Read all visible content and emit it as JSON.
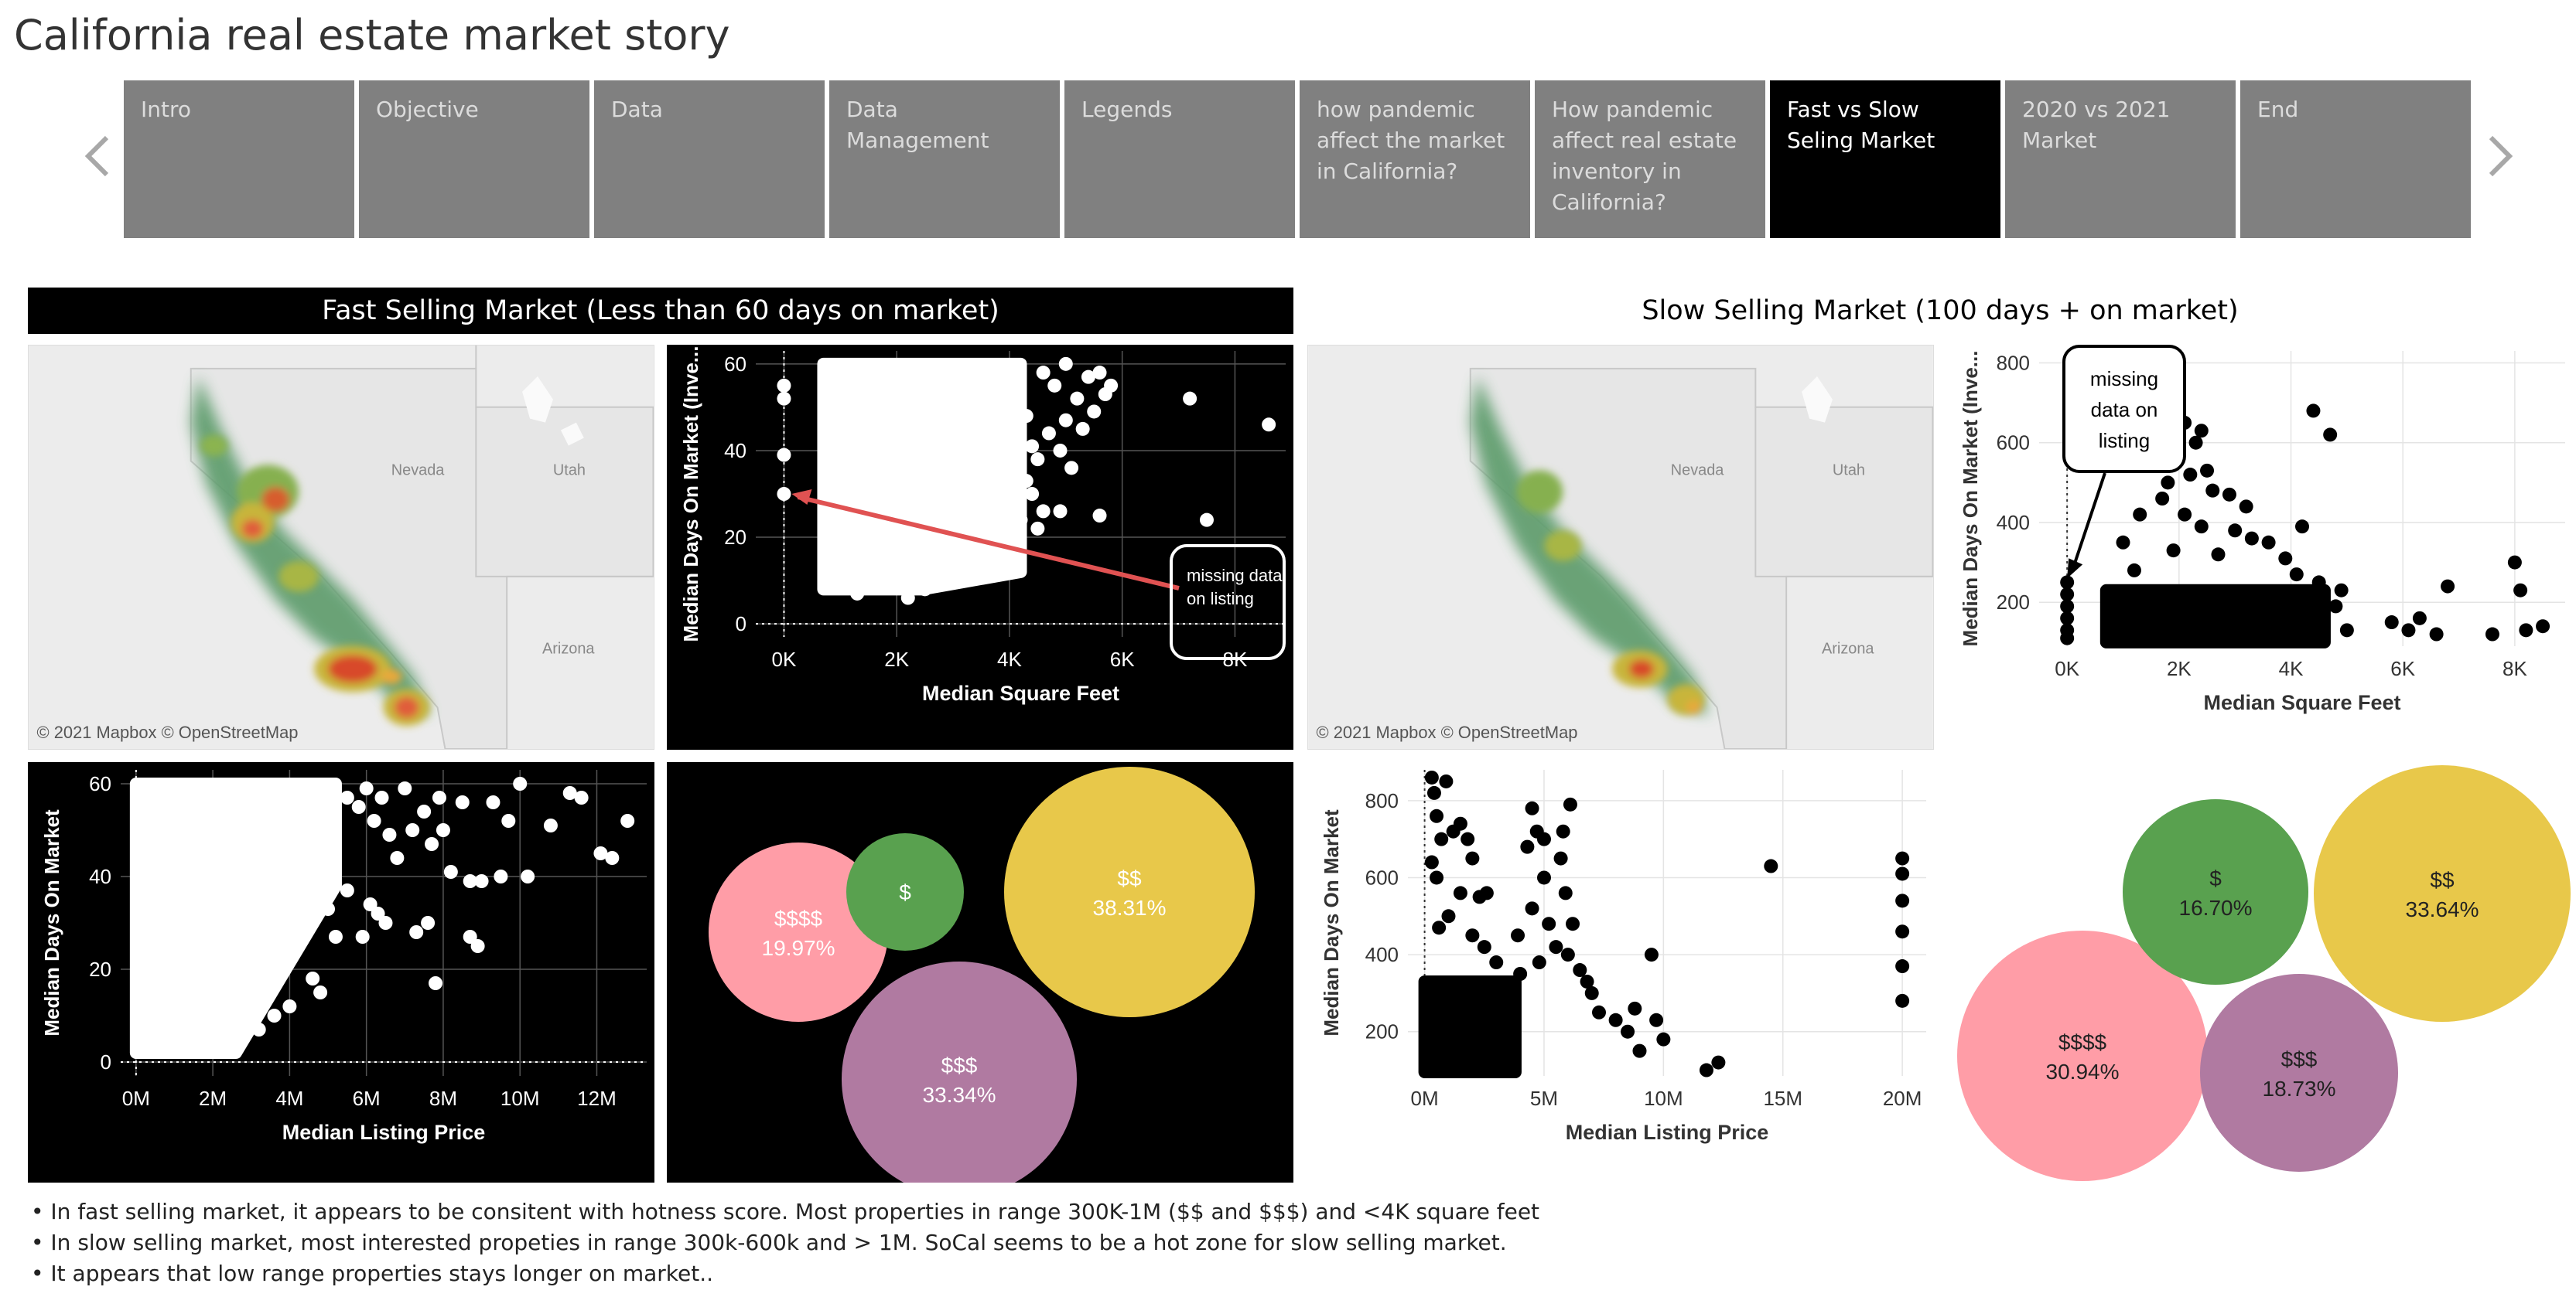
{
  "story": {
    "title": "California real estate market story"
  },
  "nav": {
    "prev_icon": "chevron-left-icon",
    "next_icon": "chevron-right-icon",
    "tabs": [
      {
        "label": "Intro",
        "active": false
      },
      {
        "label": "Objective",
        "active": false
      },
      {
        "label": "Data",
        "active": false
      },
      {
        "label": "Data Management",
        "active": false
      },
      {
        "label": "Legends",
        "active": false
      },
      {
        "label": "how pandemic affect the market in California?",
        "active": false
      },
      {
        "label": "How pandemic affect real estate inventory in California?",
        "active": false
      },
      {
        "label": "Fast vs Slow Seling Market",
        "active": true
      },
      {
        "label": "2020 vs 2021 Market",
        "active": false
      },
      {
        "label": "End",
        "active": false
      }
    ]
  },
  "fast": {
    "title": "Fast Selling Market (Less than 60 days on market)",
    "map": {
      "credit": "© 2021 Mapbox © OpenStreetMap",
      "labels": [
        "Nevada",
        "Utah",
        "Arizona"
      ]
    },
    "annotation": "missing data on listing"
  },
  "slow": {
    "title": "Slow Selling Market (100 days +  on market)",
    "map": {
      "credit": "© 2021 Mapbox © OpenStreetMap",
      "labels": [
        "Nevada",
        "Utah",
        "Arizona"
      ]
    },
    "annotation": "missing data on listing"
  },
  "chart_data": [
    {
      "id": "fast-scatter-sqft",
      "type": "scatter",
      "xlabel": "Median Square Feet",
      "ylabel": "Median Days On Market (Inve...",
      "xlim": [
        -500,
        8900
      ],
      "ylim": [
        -3,
        63
      ],
      "xticks": [
        0,
        2000,
        4000,
        6000,
        8000
      ],
      "xtick_labels": [
        "0K",
        "2K",
        "4K",
        "6K",
        "8K"
      ],
      "yticks": [
        0,
        20,
        40,
        60
      ],
      "ytick_labels": [
        "0",
        "20",
        "40",
        "60"
      ],
      "background": "#000000",
      "point_color": "#ffffff",
      "dense_region": {
        "x": [
          700,
          4200
        ],
        "y_top": 60,
        "y_bottom_left": 8,
        "y_bottom_right": 12
      },
      "points": [
        [
          0,
          55
        ],
        [
          0,
          52
        ],
        [
          0,
          39
        ],
        [
          0,
          30
        ],
        [
          4600,
          58
        ],
        [
          4800,
          55
        ],
        [
          5000,
          60
        ],
        [
          5200,
          52
        ],
        [
          5400,
          57
        ],
        [
          5500,
          49
        ],
        [
          5300,
          45
        ],
        [
          4700,
          44
        ],
        [
          4900,
          40
        ],
        [
          5100,
          36
        ],
        [
          4500,
          38
        ],
        [
          4400,
          30
        ],
        [
          4600,
          26
        ],
        [
          4300,
          33
        ],
        [
          5600,
          58
        ],
        [
          5800,
          55
        ],
        [
          5700,
          53
        ],
        [
          5600,
          25
        ],
        [
          4900,
          26
        ],
        [
          4400,
          41
        ],
        [
          4300,
          48
        ],
        [
          4500,
          22
        ],
        [
          5000,
          47
        ],
        [
          4200,
          24
        ],
        [
          7200,
          52
        ],
        [
          8600,
          46
        ],
        [
          7500,
          24
        ],
        [
          3900,
          20
        ],
        [
          3800,
          17
        ],
        [
          2500,
          8
        ],
        [
          1300,
          7
        ],
        [
          2200,
          6
        ]
      ]
    },
    {
      "id": "fast-scatter-price",
      "type": "scatter",
      "xlabel": "Median Listing Price",
      "ylabel": "Median Days On Market",
      "xlim": [
        -400000,
        13300000
      ],
      "ylim": [
        -3,
        63
      ],
      "xticks": [
        0,
        2000000,
        4000000,
        6000000,
        8000000,
        10000000,
        12000000
      ],
      "xtick_labels": [
        "0M",
        "2M",
        "4M",
        "6M",
        "8M",
        "10M",
        "12M"
      ],
      "yticks": [
        0,
        20,
        40,
        60
      ],
      "ytick_labels": [
        "0",
        "20",
        "40",
        "60"
      ],
      "background": "#000000",
      "point_color": "#ffffff",
      "dense_region": {
        "x": [
          0,
          5200000
        ],
        "y_top": 60,
        "y_bottom_left": 2,
        "y_bottom_right": 38
      },
      "points": [
        [
          5500000,
          57
        ],
        [
          5800000,
          55
        ],
        [
          6000000,
          59
        ],
        [
          6200000,
          52
        ],
        [
          6400000,
          57
        ],
        [
          6600000,
          49
        ],
        [
          6800000,
          44
        ],
        [
          7000000,
          59
        ],
        [
          7200000,
          50
        ],
        [
          7500000,
          54
        ],
        [
          7700000,
          47
        ],
        [
          7900000,
          57
        ],
        [
          8000000,
          50
        ],
        [
          8200000,
          41
        ],
        [
          8500000,
          56
        ],
        [
          8700000,
          39
        ],
        [
          9000000,
          39
        ],
        [
          9300000,
          56
        ],
        [
          9500000,
          40
        ],
        [
          10000000,
          60
        ],
        [
          10200000,
          40
        ],
        [
          11300000,
          58
        ],
        [
          11600000,
          57
        ],
        [
          12100000,
          45
        ],
        [
          12400000,
          44
        ],
        [
          12800000,
          52
        ],
        [
          10800000,
          51
        ],
        [
          9700000,
          52
        ],
        [
          6500000,
          30
        ],
        [
          6300000,
          32
        ],
        [
          5900000,
          27
        ],
        [
          6100000,
          34
        ],
        [
          7300000,
          28
        ],
        [
          7600000,
          30
        ],
        [
          8900000,
          25
        ],
        [
          8700000,
          27
        ],
        [
          7800000,
          17
        ],
        [
          5200000,
          27
        ],
        [
          5000000,
          33
        ],
        [
          5500000,
          37
        ],
        [
          4000000,
          12
        ],
        [
          3600000,
          10
        ],
        [
          3200000,
          7
        ],
        [
          4800000,
          15
        ],
        [
          4600000,
          18
        ]
      ]
    },
    {
      "id": "fast-bubbles",
      "type": "bubble",
      "bubbles": [
        {
          "label": "$$",
          "value": "38.31%",
          "color": "#e8c84a"
        },
        {
          "label": "$$$",
          "value": "33.34%",
          "color": "#b07aa1"
        },
        {
          "label": "$$$$",
          "value": "19.97%",
          "color": "#ff9da7"
        },
        {
          "label": "$",
          "value": "",
          "color": "#59a14f"
        }
      ]
    },
    {
      "id": "slow-scatter-sqft",
      "type": "scatter",
      "xlabel": "Median Square Feet",
      "ylabel": "Median Days On Market (Inve...",
      "xlim": [
        -500,
        8900
      ],
      "ylim": [
        90,
        830
      ],
      "xticks": [
        0,
        2000,
        4000,
        6000,
        8000
      ],
      "xtick_labels": [
        "0K",
        "2K",
        "4K",
        "6K",
        "8K"
      ],
      "yticks": [
        200,
        400,
        600,
        800
      ],
      "ytick_labels": [
        "200",
        "400",
        "600",
        "800"
      ],
      "background": "#ffffff",
      "point_color": "#000000",
      "dense_region": {
        "x": [
          700,
          4600
        ],
        "y_top": 230,
        "y_bottom_left": 100,
        "y_bottom_right": 100
      },
      "points": [
        [
          0,
          250
        ],
        [
          0,
          220
        ],
        [
          0,
          190
        ],
        [
          0,
          160
        ],
        [
          0,
          130
        ],
        [
          0,
          110
        ],
        [
          1800,
          810
        ],
        [
          2000,
          760
        ],
        [
          1600,
          720
        ],
        [
          1700,
          680
        ],
        [
          2100,
          650
        ],
        [
          2400,
          630
        ],
        [
          2300,
          600
        ],
        [
          1500,
          600
        ],
        [
          1400,
          560
        ],
        [
          1900,
          550
        ],
        [
          2200,
          520
        ],
        [
          2500,
          530
        ],
        [
          1800,
          500
        ],
        [
          2600,
          480
        ],
        [
          1700,
          460
        ],
        [
          2900,
          470
        ],
        [
          1300,
          420
        ],
        [
          2100,
          420
        ],
        [
          2400,
          390
        ],
        [
          3000,
          380
        ],
        [
          1000,
          350
        ],
        [
          3300,
          360
        ],
        [
          3600,
          350
        ],
        [
          4200,
          390
        ],
        [
          4100,
          270
        ],
        [
          4500,
          250
        ],
        [
          4900,
          230
        ],
        [
          4800,
          190
        ],
        [
          1900,
          330
        ],
        [
          2700,
          320
        ],
        [
          3900,
          310
        ],
        [
          1200,
          280
        ],
        [
          5000,
          130
        ],
        [
          5800,
          150
        ],
        [
          6100,
          130
        ],
        [
          6300,
          160
        ],
        [
          6600,
          120
        ],
        [
          6800,
          240
        ],
        [
          7600,
          120
        ],
        [
          8000,
          300
        ],
        [
          8100,
          230
        ],
        [
          8200,
          130
        ],
        [
          8500,
          140
        ],
        [
          4400,
          680
        ],
        [
          4700,
          620
        ],
        [
          3200,
          440
        ]
      ]
    },
    {
      "id": "slow-scatter-price",
      "type": "scatter",
      "xlabel": "Median Listing Price",
      "ylabel": "Median Days On Market",
      "xlim": [
        -700000,
        21000000
      ],
      "ylim": [
        85,
        880
      ],
      "xticks": [
        0,
        5000000,
        10000000,
        15000000,
        20000000
      ],
      "xtick_labels": [
        "0M",
        "5M",
        "10M",
        "15M",
        "20M"
      ],
      "yticks": [
        200,
        400,
        600,
        800
      ],
      "ytick_labels": [
        "200",
        "400",
        "600",
        "800"
      ],
      "background": "#ffffff",
      "point_color": "#000000",
      "dense_region": {
        "x": [
          0,
          3800000
        ],
        "y_top": 330,
        "y_bottom_left": 95,
        "y_bottom_right": 95
      },
      "points": [
        [
          300000,
          860
        ],
        [
          400000,
          820
        ],
        [
          500000,
          760
        ],
        [
          700000,
          700
        ],
        [
          900000,
          850
        ],
        [
          1200000,
          720
        ],
        [
          1500000,
          740
        ],
        [
          1800000,
          700
        ],
        [
          2000000,
          650
        ],
        [
          300000,
          640
        ],
        [
          500000,
          600
        ],
        [
          2300000,
          550
        ],
        [
          2600000,
          560
        ],
        [
          4500000,
          780
        ],
        [
          4700000,
          720
        ],
        [
          4300000,
          680
        ],
        [
          5000000,
          700
        ],
        [
          5800000,
          720
        ],
        [
          6100000,
          790
        ],
        [
          5700000,
          650
        ],
        [
          5900000,
          560
        ],
        [
          5000000,
          600
        ],
        [
          4500000,
          520
        ],
        [
          5200000,
          480
        ],
        [
          5500000,
          420
        ],
        [
          6200000,
          480
        ],
        [
          6000000,
          400
        ],
        [
          6500000,
          360
        ],
        [
          4000000,
          350
        ],
        [
          4800000,
          380
        ],
        [
          3900000,
          450
        ],
        [
          6800000,
          330
        ],
        [
          7000000,
          300
        ],
        [
          7300000,
          250
        ],
        [
          8000000,
          230
        ],
        [
          8800000,
          260
        ],
        [
          9500000,
          400
        ],
        [
          9700000,
          230
        ],
        [
          10000000,
          180
        ],
        [
          11800000,
          100
        ],
        [
          12300000,
          120
        ],
        [
          14500000,
          630
        ],
        [
          20000000,
          650
        ],
        [
          20000000,
          610
        ],
        [
          20000000,
          540
        ],
        [
          20000000,
          460
        ],
        [
          20000000,
          370
        ],
        [
          20000000,
          280
        ],
        [
          1000000,
          500
        ],
        [
          2500000,
          420
        ],
        [
          3000000,
          380
        ],
        [
          2000000,
          450
        ],
        [
          1500000,
          560
        ],
        [
          600000,
          470
        ],
        [
          8500000,
          200
        ],
        [
          9000000,
          150
        ]
      ]
    },
    {
      "id": "slow-bubbles",
      "type": "bubble",
      "bubbles": [
        {
          "label": "$$",
          "value": "33.64%",
          "color": "#e8c84a"
        },
        {
          "label": "$$$$",
          "value": "30.94%",
          "color": "#ff9da7"
        },
        {
          "label": "$$$",
          "value": "18.73%",
          "color": "#b07aa1"
        },
        {
          "label": "$",
          "value": "16.70%",
          "color": "#59a14f"
        }
      ]
    }
  ],
  "notes": [
    "• In fast selling market, it appears to be consitent with hotness score. Most properties in range 300K-1M ($$ and $$$) and <4K square feet",
    "• In slow selling market, most interested propeties in range 300k-600k and > 1M. SoCal seems to be a hot zone for slow selling market.",
    "• It appears that low range properties stays longer on market.."
  ]
}
